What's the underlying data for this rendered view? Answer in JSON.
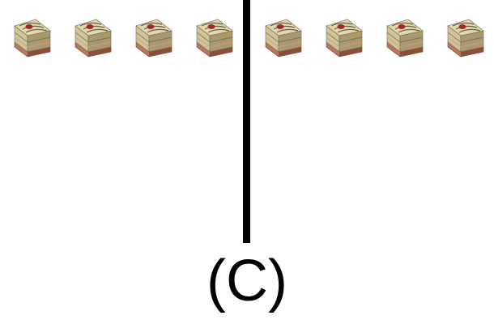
{
  "label": "(C)",
  "groups": [
    {
      "name": "left-group",
      "count": 4
    },
    {
      "name": "right-group",
      "count": 4
    }
  ],
  "colors": {
    "divider": "#000000",
    "cake_sponge": "#cfc49a",
    "cake_side_light": "#e2d8b0",
    "cake_side_dark": "#a89a6c",
    "cake_stripe": "#6b6449",
    "cake_base": "#b87860",
    "cake_base_dark": "#8a4e3c",
    "cake_top_red": "#a3262a"
  },
  "icon": "cake-slice-icon"
}
